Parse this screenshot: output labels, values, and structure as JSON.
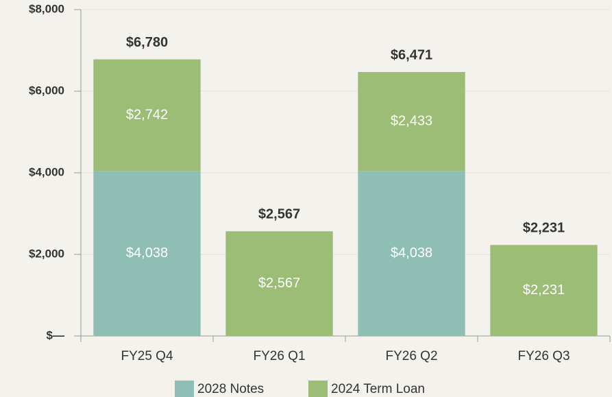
{
  "chart_data": {
    "type": "stacked_bar",
    "categories": [
      "FY25 Q4",
      "FY26 Q1",
      "FY26 Q2",
      "FY26 Q3"
    ],
    "series": [
      {
        "name": "2028 Notes",
        "color": "#8fbfb4",
        "values": [
          4038,
          null,
          4038,
          null
        ],
        "value_labels": [
          "$4,038",
          null,
          "$4,038",
          null
        ]
      },
      {
        "name": "2024 Term Loan",
        "color": "#9bbd75",
        "values": [
          2742,
          2567,
          2433,
          2231
        ],
        "value_labels": [
          "$2,742",
          "$2,567",
          "$2,433",
          "$2,231"
        ]
      }
    ],
    "totals": [
      6780,
      2567,
      6471,
      2231
    ],
    "total_labels": [
      "$6,780",
      "$2,567",
      "$6,471",
      "$2,231"
    ],
    "ylim": [
      0,
      8000
    ],
    "yticks": [
      {
        "value": 0,
        "label": "$—"
      },
      {
        "value": 2000,
        "label": "$2,000"
      },
      {
        "value": 4000,
        "label": "$4,000"
      },
      {
        "value": 6000,
        "label": "$6,000"
      },
      {
        "value": 8000,
        "label": "$8,000"
      }
    ],
    "grid": true,
    "legend": "bottom"
  }
}
